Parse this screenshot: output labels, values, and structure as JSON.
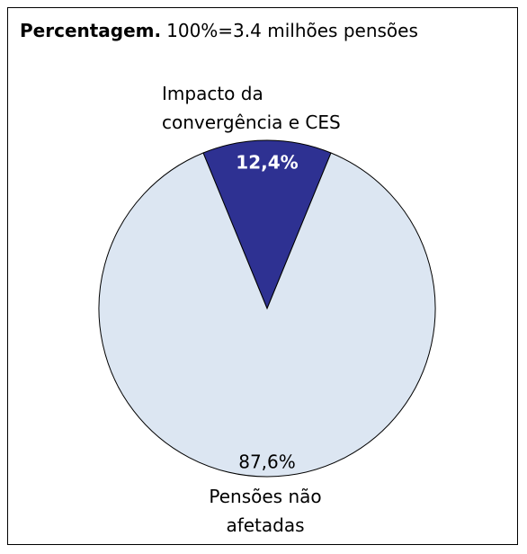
{
  "chart_data": {
    "type": "pie",
    "title": "Percentagem.",
    "subtitle": "100%=3.4 milhões pensões",
    "categories": [
      "Impacto da convergência e CES",
      "Pensões não afetadas"
    ],
    "values": [
      12.4,
      87.6
    ],
    "value_labels": [
      "12,4%",
      "87,6%"
    ],
    "colors": [
      "#2e3192",
      "#dce6f2"
    ]
  }
}
